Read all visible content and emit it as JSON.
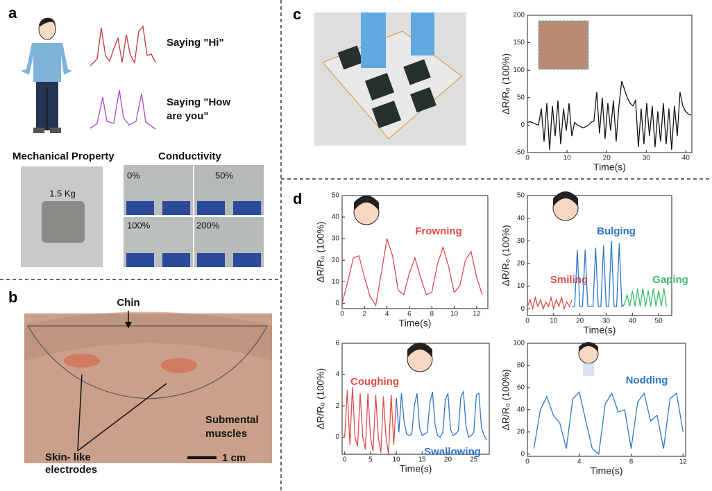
{
  "panel_labels": [
    "a",
    "b",
    "c",
    "d"
  ],
  "panel_a": {
    "saying_hi": "Saying  \"Hi\"",
    "saying_how": [
      "Saying  \"How",
      "are you\""
    ],
    "mechanical_property": "Mechanical Property",
    "weight": "1.5 Kg",
    "conductivity": "Conductivity",
    "strains": [
      "0%",
      "50%",
      "100%",
      "200%"
    ]
  },
  "panel_b": {
    "chin": "Chin",
    "muscles": [
      "Submental",
      "muscles"
    ],
    "electrodes": [
      "Skin- like",
      "electrodes"
    ],
    "scale": "1 cm"
  },
  "chart_data": [
    {
      "type": "line",
      "x_label": "Time(s)",
      "y_label": "ΔR/R₀ (100%)",
      "color": "#111111",
      "xlim": [
        0,
        41.5
      ],
      "xticks": [
        0,
        10,
        20,
        30,
        40
      ],
      "ylim": [
        -50,
        200
      ],
      "yticks": [
        -50,
        0,
        50,
        100,
        150,
        200
      ],
      "x": [
        0,
        0.7,
        1.4,
        2.1,
        2.8,
        3.5,
        4.2,
        4.9,
        5.6,
        6.3,
        7,
        7.7,
        8.4,
        9.1,
        9.8,
        10.5,
        11.2,
        11.9,
        12.6,
        13.3,
        14,
        14.7,
        15.4,
        16.1,
        16.8,
        17.5,
        18.2,
        18.9,
        19.6,
        20.3,
        21,
        21.7,
        22.4,
        23.1,
        23.8,
        24.5,
        25.2,
        25.9,
        26.6,
        27.3,
        28,
        28.7,
        29.4,
        30.1,
        30.8,
        31.5,
        32.2,
        32.9,
        33.6,
        34.3,
        35,
        35.7,
        36.4,
        37.1,
        37.8,
        38.5,
        39.2,
        39.9,
        40.6,
        41.3
      ],
      "values": [
        5,
        6,
        4,
        2,
        0,
        30,
        -30,
        40,
        -45,
        35,
        -20,
        45,
        -35,
        30,
        -10,
        40,
        -20,
        5,
        0,
        -2,
        -5,
        -3,
        0,
        5,
        8,
        60,
        -15,
        50,
        -25,
        40,
        -10,
        45,
        -30,
        35,
        80,
        65,
        50,
        40,
        35,
        45,
        -40,
        30,
        -35,
        40,
        -20,
        35,
        -40,
        25,
        -30,
        40,
        -35,
        30,
        -45,
        35,
        -20,
        60,
        35,
        25,
        20,
        18
      ]
    },
    {
      "type": "line",
      "x_label": "Time(s)",
      "y_label": "ΔR/R₀ (100%)",
      "xlim": [
        0,
        13
      ],
      "xticks": [
        0,
        2,
        4,
        6,
        8,
        10,
        12
      ],
      "ylim": [
        -2.5,
        50
      ],
      "yticks": [
        0,
        10,
        20,
        30,
        40,
        50
      ],
      "series": [
        {
          "name": "Frowning",
          "color": "#e04a4a",
          "x": [
            0,
            0.5,
            1,
            1.5,
            2,
            2.5,
            3,
            3.5,
            4,
            4.5,
            5,
            5.5,
            6,
            6.5,
            7,
            7.5,
            8,
            8.5,
            9,
            9.5,
            10,
            10.5,
            11,
            11.5,
            12,
            12.5
          ],
          "values": [
            0,
            10,
            21,
            22,
            12,
            3,
            -1,
            14,
            30,
            22,
            6,
            4,
            14,
            21,
            12,
            4,
            5,
            18,
            26,
            17,
            5,
            8,
            20,
            24,
            12,
            4
          ]
        }
      ]
    },
    {
      "type": "line",
      "x_label": "Time(s)",
      "y_label": "ΔR/R₀ (100%)",
      "xlim": [
        0,
        55
      ],
      "xticks": [
        0,
        10,
        20,
        30,
        40,
        50
      ],
      "ylim": [
        -3,
        50
      ],
      "yticks": [
        0,
        10,
        20,
        30,
        40,
        50
      ],
      "series": [
        {
          "name": "Smiling",
          "color": "#e04a4a",
          "x": [
            0,
            1,
            2,
            3,
            4,
            5,
            6,
            7,
            8,
            9,
            10,
            11,
            12,
            13,
            14,
            15,
            16,
            17
          ],
          "values": [
            1,
            4,
            0,
            5,
            1,
            4,
            0,
            3,
            1,
            5,
            0,
            4,
            1,
            5,
            0,
            3,
            1,
            4
          ]
        },
        {
          "name": "Bulging",
          "color": "#2e75c9",
          "x": [
            17,
            18,
            19,
            20,
            21,
            22,
            23,
            24,
            25,
            26,
            27,
            28,
            29,
            30,
            31,
            32,
            33,
            34,
            35,
            36,
            37
          ],
          "values": [
            1,
            1,
            26,
            1,
            1,
            26,
            1,
            1,
            1,
            27,
            1,
            1,
            28,
            1,
            1,
            30,
            1,
            1,
            29,
            1,
            2
          ]
        },
        {
          "name": "Gaping",
          "color": "#3dbb6a",
          "x": [
            37,
            38,
            39,
            40,
            41,
            42,
            43,
            44,
            45,
            46,
            47,
            48,
            49,
            50,
            51,
            52,
            53
          ],
          "values": [
            2,
            6,
            1,
            8,
            1,
            9,
            1,
            9,
            1,
            8,
            1,
            9,
            1,
            8,
            1,
            9,
            1
          ]
        }
      ]
    },
    {
      "type": "line",
      "x_label": "Time(s)",
      "y_label": "ΔR/R₀ (100%)",
      "xlim": [
        -0.5,
        28
      ],
      "xticks": [
        0,
        5,
        10,
        15,
        20,
        25
      ],
      "ylim": [
        -1.1,
        6
      ],
      "yticks": [
        0,
        2,
        4,
        6
      ],
      "series": [
        {
          "name": "Coughing",
          "color": "#e04a4a",
          "x": [
            0,
            0.5,
            1,
            1.5,
            2,
            2.5,
            3,
            3.5,
            4,
            4.5,
            5,
            5.5,
            6,
            6.5,
            7,
            7.5,
            8,
            8.5,
            9,
            9.5,
            10
          ],
          "values": [
            0,
            3,
            -0.5,
            3.2,
            0,
            -0.6,
            2.8,
            0,
            -0.8,
            2.8,
            0,
            -0.9,
            2.7,
            0,
            -1,
            2.6,
            0,
            -1.1,
            2.7,
            -0.5,
            2.5
          ]
        },
        {
          "name": "Swallowing",
          "color": "#2e75c9",
          "x": [
            10,
            10.5,
            11,
            11.5,
            12,
            12.5,
            13,
            13.5,
            14,
            14.5,
            15,
            15.5,
            16,
            16.5,
            17,
            17.5,
            18,
            18.5,
            19,
            19.5,
            20,
            20.5,
            21,
            21.5,
            22,
            22.5,
            23,
            23.5,
            24,
            24.5,
            25,
            25.5,
            26,
            26.5,
            27,
            27.5
          ],
          "values": [
            2.5,
            0.3,
            2.8,
            1,
            0.2,
            0.1,
            0.2,
            2.0,
            2.8,
            0.6,
            0.1,
            0.2,
            0.3,
            2.2,
            2.9,
            0.8,
            0.1,
            0,
            0.3,
            2.4,
            2.8,
            0.5,
            0.1,
            0.2,
            0.4,
            2.6,
            2.9,
            0.7,
            0,
            0.1,
            0.3,
            2.7,
            2.8,
            0.6,
            0.1,
            -0.2
          ]
        }
      ]
    },
    {
      "type": "line",
      "x_label": "Time(s)",
      "y_label": "ΔR/R₀ (100%)",
      "xlim": [
        0,
        12.2
      ],
      "xticks": [
        0,
        4,
        8,
        12
      ],
      "ylim": [
        -2,
        100
      ],
      "yticks": [
        0,
        20,
        40,
        60,
        80,
        100
      ],
      "series": [
        {
          "name": "Nodding",
          "color": "#2e75c9",
          "x": [
            0.5,
            1,
            1.5,
            2,
            2.5,
            3,
            3.5,
            4,
            4.5,
            5,
            5.5,
            6,
            6.5,
            7,
            7.5,
            8,
            8.5,
            9,
            9.5,
            10,
            10.5,
            11,
            11.5,
            12
          ],
          "values": [
            5,
            40,
            52,
            35,
            28,
            5,
            50,
            56,
            30,
            5,
            0,
            45,
            55,
            38,
            40,
            5,
            47,
            55,
            30,
            35,
            5,
            50,
            55,
            20
          ]
        }
      ]
    }
  ]
}
